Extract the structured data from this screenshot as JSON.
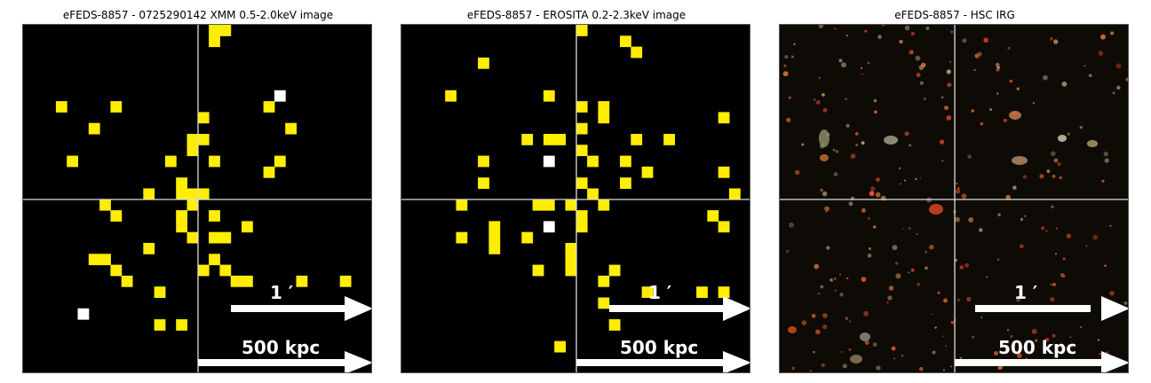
{
  "panels": [
    {
      "title": "eFEDS-8857 - 0725290142 XMM 0.5-2.0keV image",
      "kind": "xray",
      "scale_arcmin_label": "1 ′",
      "scale_kpc_label": "500 kpc",
      "colors": {
        "pixel": "#ffee00",
        "bright_pixel": "#ffffff",
        "crosshair": "#dddddd"
      }
    },
    {
      "title": "eFEDS-8857 -  EROSITA 0.2-2.3keV image",
      "kind": "xray",
      "scale_arcmin_label": "1 ′",
      "scale_kpc_label": "500 kpc",
      "colors": {
        "pixel": "#ffee00",
        "bright_pixel": "#ffffff",
        "crosshair": "#dddddd"
      }
    },
    {
      "title": "eFEDS-8857 - HSC IRG",
      "kind": "optical",
      "scale_arcmin_label": "1 ′",
      "scale_kpc_label": "500 kpc",
      "colors": {
        "background": "#0e0b07",
        "crosshair": "#dddddd"
      }
    }
  ]
}
